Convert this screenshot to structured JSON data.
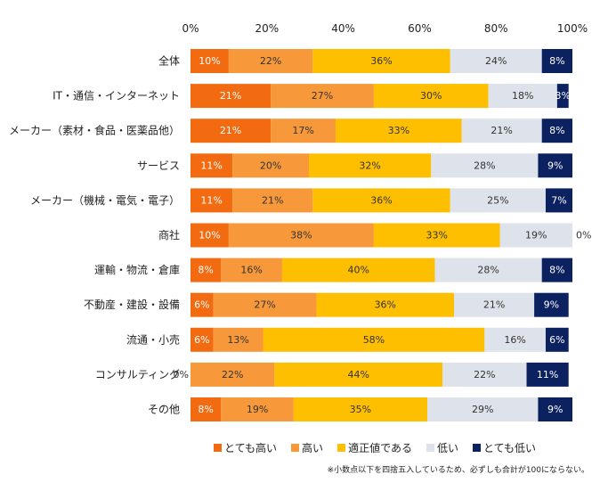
{
  "chart_data": {
    "type": "bar",
    "orientation": "horizontal",
    "stacked": true,
    "x_ticks": [
      "0%",
      "20%",
      "40%",
      "60%",
      "80%",
      "100%"
    ],
    "xlim": [
      0,
      100
    ],
    "categories": [
      "全体",
      "IT・通信・インターネット",
      "メーカー（素材・食品・医薬品他）",
      "サービス",
      "メーカー（機械・電気・電子）",
      "商社",
      "運輸・物流・倉庫",
      "不動産・建設・設備",
      "流通・小売",
      "コンサルティング",
      "その他"
    ],
    "series": [
      {
        "name": "とても高い",
        "color": "#F26B11",
        "values": [
          10,
          21,
          21,
          11,
          11,
          10,
          8,
          6,
          6,
          0,
          8
        ]
      },
      {
        "name": "高い",
        "color": "#F7993A",
        "values": [
          22,
          27,
          17,
          20,
          21,
          38,
          16,
          27,
          13,
          22,
          19
        ]
      },
      {
        "name": "適正値である",
        "color": "#FDBF00",
        "values": [
          36,
          30,
          33,
          32,
          36,
          33,
          40,
          36,
          58,
          44,
          35
        ]
      },
      {
        "name": "低い",
        "color": "#DEE2EA",
        "values": [
          24,
          18,
          21,
          28,
          25,
          19,
          28,
          21,
          16,
          22,
          29
        ]
      },
      {
        "name": "とても低い",
        "color": "#0C2160",
        "values": [
          8,
          3,
          8,
          9,
          7,
          0,
          8,
          9,
          6,
          11,
          9
        ]
      }
    ],
    "label_colors": [
      "#ffffff",
      "#333333",
      "#333333",
      "#333333",
      "#ffffff"
    ],
    "note": "※小数点以下を四捨五入しているため、必ずしも合計が100にならない。"
  }
}
